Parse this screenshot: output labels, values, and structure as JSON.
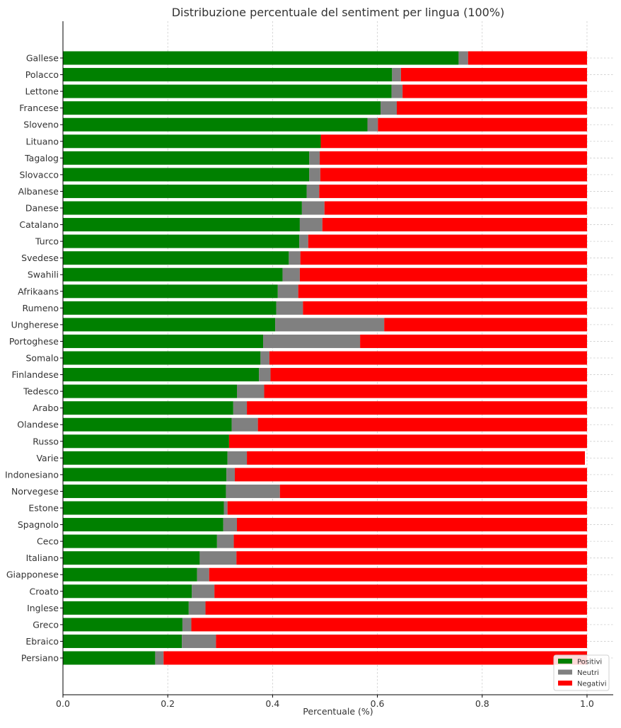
{
  "chart_data": {
    "type": "bar",
    "orientation": "horizontal",
    "stacked": true,
    "title": "Distribuzione percentuale del sentiment per lingua (100%)",
    "xlabel": "Percentuale (%)",
    "ylabel": "",
    "xlim": [
      0,
      1.05
    ],
    "xticks": [
      "0.0",
      "0.2",
      "0.4",
      "0.6",
      "0.8",
      "1.0"
    ],
    "grid": true,
    "legend_position": "bottom-right",
    "categories": [
      "Gallese",
      "Polacco",
      "Lettone",
      "Francese",
      "Sloveno",
      "Lituano",
      "Tagalog",
      "Slovacco",
      "Albanese",
      "Danese",
      "Catalano",
      "Turco",
      "Svedese",
      "Swahili",
      "Afrikaans",
      "Rumeno",
      "Ungherese",
      "Portoghese",
      "Somalo",
      "Finlandese",
      "Tedesco",
      "Arabo",
      "Olandese",
      "Russo",
      "Varie",
      "Indonesiano",
      "Norvegese",
      "Estone",
      "Spagnolo",
      "Ceco",
      "Italiano",
      "Giapponese",
      "Croato",
      "Inglese",
      "Greco",
      "Ebraico",
      "Persiano"
    ],
    "series": [
      {
        "name": "Positivi",
        "color": "#008000",
        "values": [
          0.755,
          0.628,
          0.627,
          0.606,
          0.581,
          0.492,
          0.47,
          0.47,
          0.465,
          0.456,
          0.452,
          0.451,
          0.431,
          0.419,
          0.41,
          0.407,
          0.405,
          0.382,
          0.377,
          0.374,
          0.332,
          0.325,
          0.322,
          0.317,
          0.314,
          0.312,
          0.311,
          0.307,
          0.306,
          0.294,
          0.261,
          0.256,
          0.246,
          0.24,
          0.228,
          0.227,
          0.176
        ]
      },
      {
        "name": "Neutri",
        "color": "#808080",
        "values": [
          0.018,
          0.017,
          0.021,
          0.031,
          0.02,
          0.0,
          0.02,
          0.021,
          0.024,
          0.043,
          0.043,
          0.017,
          0.022,
          0.033,
          0.039,
          0.051,
          0.208,
          0.185,
          0.017,
          0.022,
          0.052,
          0.026,
          0.05,
          0.0,
          0.037,
          0.016,
          0.103,
          0.007,
          0.026,
          0.032,
          0.07,
          0.023,
          0.043,
          0.032,
          0.017,
          0.065,
          0.016
        ]
      },
      {
        "name": "Negativi",
        "color": "#ff0000",
        "values": [
          0.227,
          0.355,
          0.352,
          0.363,
          0.399,
          0.508,
          0.51,
          0.509,
          0.511,
          0.501,
          0.505,
          0.532,
          0.547,
          0.548,
          0.551,
          0.542,
          0.387,
          0.433,
          0.606,
          0.604,
          0.616,
          0.649,
          0.628,
          0.683,
          0.645,
          0.672,
          0.586,
          0.686,
          0.668,
          0.674,
          0.669,
          0.721,
          0.711,
          0.728,
          0.755,
          0.708,
          0.808
        ]
      }
    ]
  }
}
